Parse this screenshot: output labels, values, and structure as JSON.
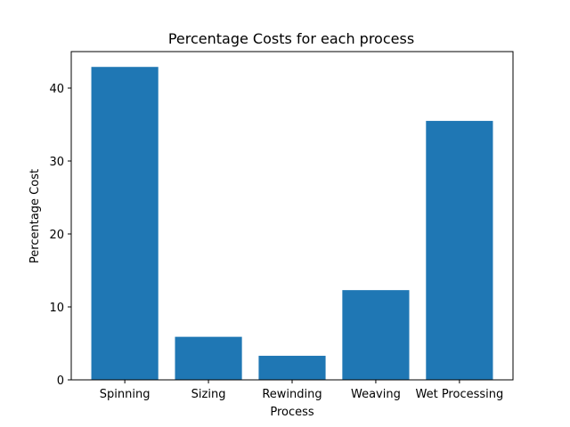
{
  "chart_data": {
    "type": "bar",
    "title": "Percentage Costs for each process",
    "xlabel": "Process",
    "ylabel": "Percentage Cost",
    "categories": [
      "Spinning",
      "Sizing",
      "Rewinding",
      "Weaving",
      "Wet Processing"
    ],
    "values": [
      42.9,
      5.9,
      3.3,
      12.3,
      35.5
    ],
    "ylim": [
      0,
      45
    ],
    "yticks": [
      0,
      10,
      20,
      30,
      40
    ],
    "ytick_labels": [
      "0",
      "10",
      "20",
      "30",
      "40"
    ],
    "grid": false,
    "bar_color": "#1f77b4"
  }
}
